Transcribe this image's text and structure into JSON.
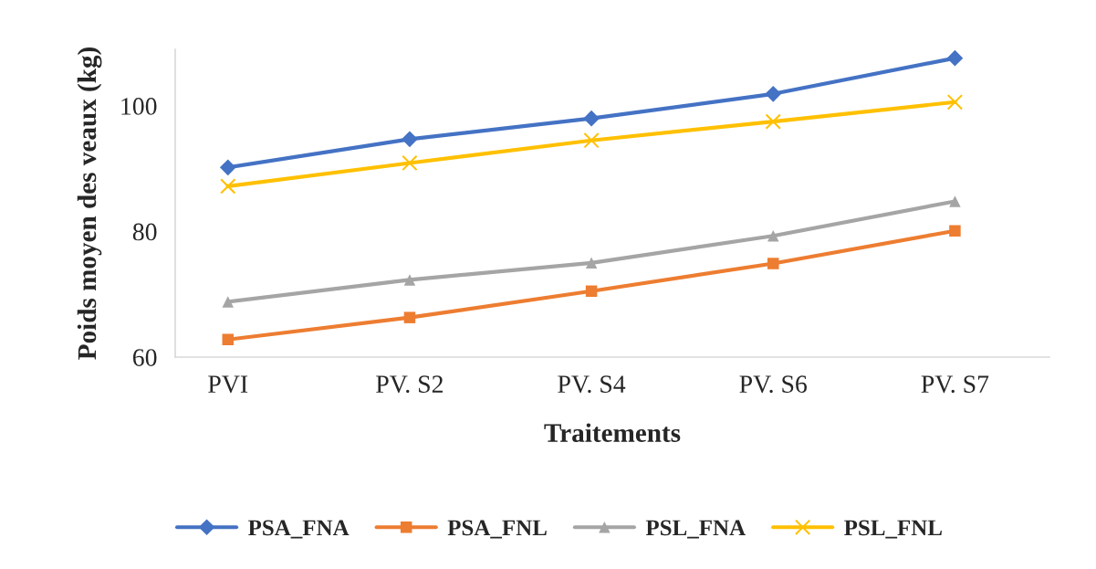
{
  "chart_data": {
    "type": "line",
    "xlabel": "Traitements",
    "ylabel": "Poids moyen des veaux (kg)",
    "categories": [
      "PVI",
      "PV. S2",
      "PV. S4",
      "PV. S6",
      "PV. S7"
    ],
    "series": [
      {
        "name": "PSA_FNA",
        "color": "#4472c4",
        "marker": "diamond",
        "values": [
          90.2,
          94.7,
          98.0,
          101.9,
          107.6
        ]
      },
      {
        "name": "PSA_FNL",
        "color": "#ed7d31",
        "marker": "square",
        "values": [
          62.8,
          66.3,
          70.5,
          74.9,
          80.1
        ]
      },
      {
        "name": "PSL_FNA",
        "color": "#a5a5a5",
        "marker": "triangle",
        "values": [
          68.8,
          72.3,
          75.0,
          79.3,
          84.8
        ]
      },
      {
        "name": "PSL_FNL",
        "color": "#ffc000",
        "marker": "cross",
        "values": [
          87.2,
          90.9,
          94.5,
          97.5,
          100.6
        ]
      }
    ],
    "ylim": [
      60,
      109
    ],
    "yticks": [
      60,
      80,
      100
    ],
    "grid": false,
    "legend": "bottom",
    "line_style": "solid"
  }
}
